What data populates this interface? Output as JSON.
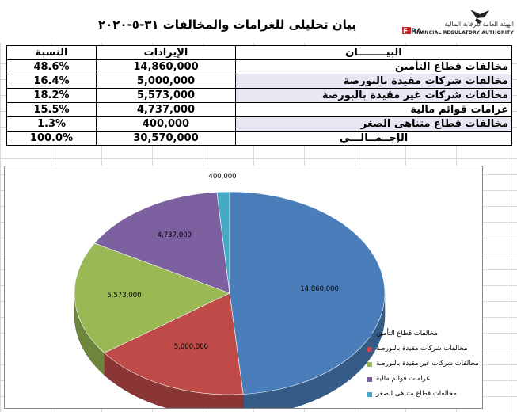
{
  "header": {
    "title": "بيان تحليلى للغرامات والمخالفات   ٣١-٥-٢٠٢٠",
    "logo_text_ar": "الهيئة العامة للرقابة المالية",
    "logo_text_en": "FINANCIAL REGULATORY AUTHORITY"
  },
  "table": {
    "headers": {
      "description": "البيــــــــان",
      "revenue": "الإيرادات",
      "ratio": "النسبة"
    },
    "rows": [
      {
        "description": "مخالفات قطاع التأمين",
        "revenue": "14,860,000",
        "ratio": "48.6%"
      },
      {
        "description": "مخالفات شركات مقيدة  بالبورصة",
        "revenue": "5,000,000",
        "ratio": "16.4%"
      },
      {
        "description": "مخالفات شركات غير مقيدة بالبورصة",
        "revenue": "5,573,000",
        "ratio": "18.2%"
      },
      {
        "description": "غرامات قوائم مالية",
        "revenue": "4,737,000",
        "ratio": "15.5%"
      },
      {
        "description": "مخالفات قطاع متناهى الصغر",
        "revenue": "400,000",
        "ratio": "1.3%"
      }
    ],
    "total": {
      "description": "الإجــمــالـــي",
      "revenue": "30,570,000",
      "ratio": "100.0%"
    }
  },
  "chart_data": {
    "type": "pie",
    "three_d": true,
    "legend_position": "bottom-right",
    "categories": [
      "مخالفات قطاع التأمين",
      "مخالفات شركات مقيدة  بالبورصة",
      "مخالفات شركات غير مقيدة بالبورصة",
      "غرامات قوائم مالية",
      "مخالفات قطاع متناهى الصغر"
    ],
    "values": [
      14860000,
      5000000,
      5573000,
      4737000,
      400000
    ],
    "data_labels": [
      "14,860,000",
      "5,000,000",
      "5,573,000",
      "4,737,000",
      "400,000"
    ],
    "colors": [
      "#4a7ebb",
      "#be4b48",
      "#98b954",
      "#7d60a0",
      "#46aac5"
    ]
  }
}
